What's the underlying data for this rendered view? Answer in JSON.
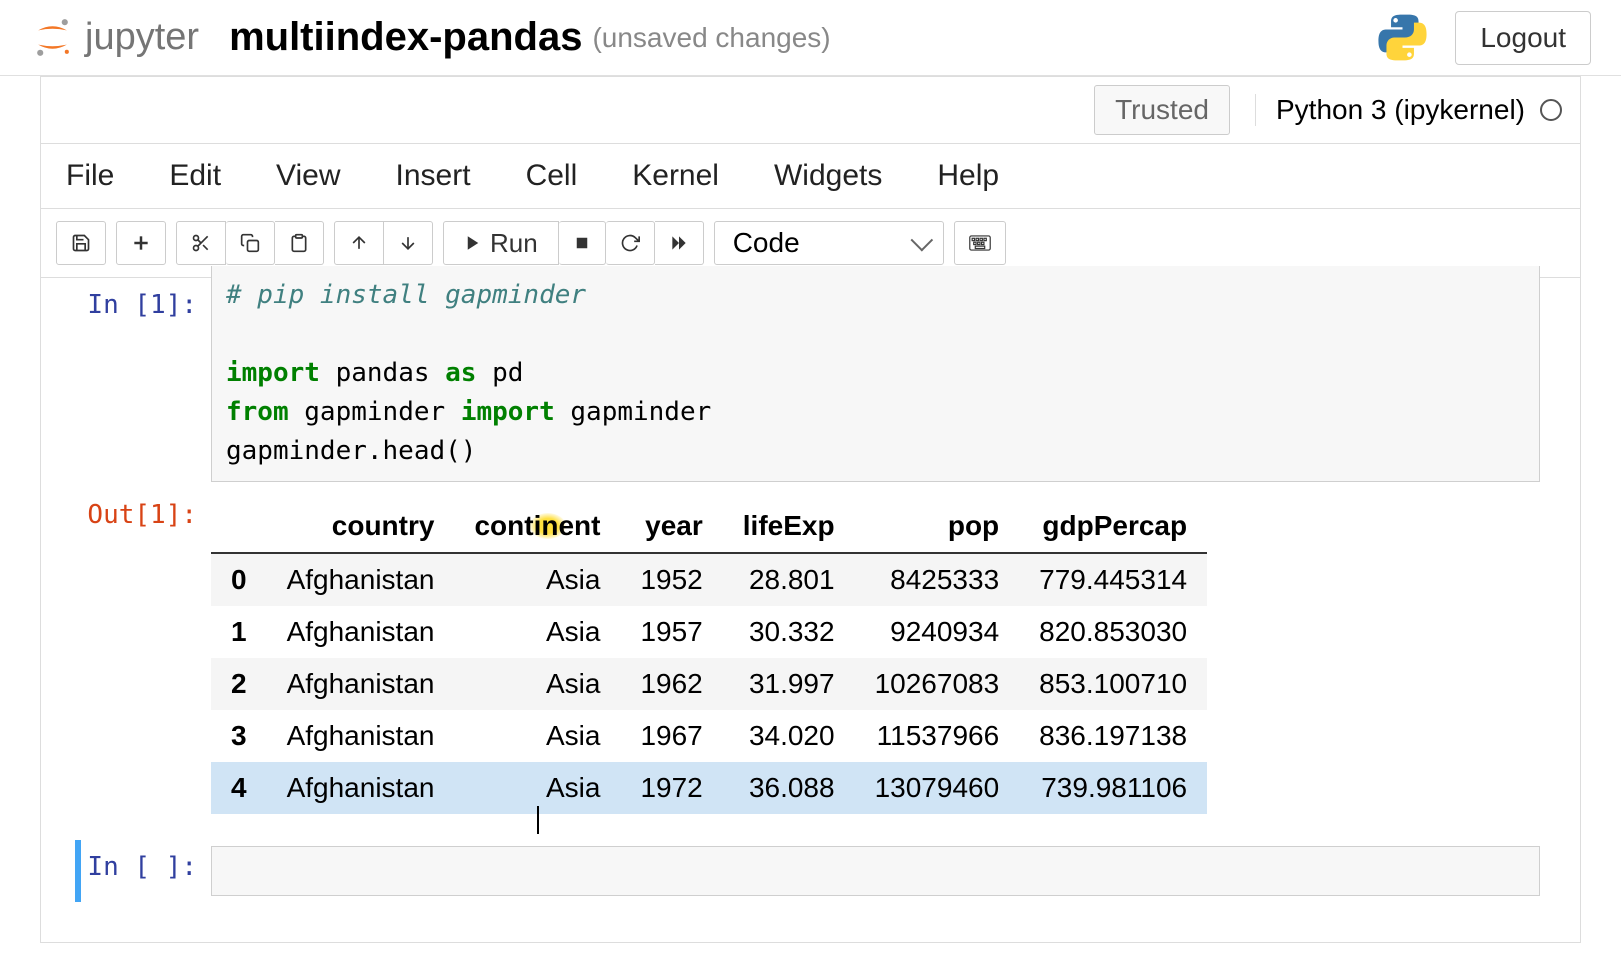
{
  "header": {
    "brand": "jupyter",
    "title": "multiindex-pandas",
    "status": "(unsaved changes)",
    "logout": "Logout"
  },
  "trust": {
    "trusted": "Trusted",
    "kernel": "Python 3 (ipykernel)"
  },
  "menu": {
    "file": "File",
    "edit": "Edit",
    "view": "View",
    "insert": "Insert",
    "cell": "Cell",
    "kernel": "Kernel",
    "widgets": "Widgets",
    "help": "Help"
  },
  "toolbar": {
    "run": "Run",
    "celltype": "Code"
  },
  "cells": {
    "in1": {
      "prompt": "In [1]:",
      "code_comment": "# pip install gapminder",
      "l2a": "import",
      "l2b": " pandas ",
      "l2c": "as",
      "l2d": " pd",
      "l3a": "from",
      "l3b": " gapminder ",
      "l3c": "import",
      "l3d": " gapminder",
      "l4": "gapminder.head()"
    },
    "out1": {
      "prompt": "Out[1]:"
    },
    "in_blank": {
      "prompt": "In [ ]:"
    }
  },
  "df": {
    "columns": [
      "country",
      "continent",
      "year",
      "lifeExp",
      "pop",
      "gdpPercap"
    ],
    "index": [
      "0",
      "1",
      "2",
      "3",
      "4"
    ],
    "rows": [
      [
        "Afghanistan",
        "Asia",
        "1952",
        "28.801",
        "8425333",
        "779.445314"
      ],
      [
        "Afghanistan",
        "Asia",
        "1957",
        "30.332",
        "9240934",
        "820.853030"
      ],
      [
        "Afghanistan",
        "Asia",
        "1962",
        "31.997",
        "10267083",
        "853.100710"
      ],
      [
        "Afghanistan",
        "Asia",
        "1967",
        "34.020",
        "11537966",
        "836.197138"
      ],
      [
        "Afghanistan",
        "Asia",
        "1972",
        "36.088",
        "13079460",
        "739.981106"
      ]
    ],
    "highlighted_row": 4,
    "highlight_header_col": 1
  },
  "colors": {
    "logo_orange": "#F37726",
    "kw_green": "#008000",
    "prompt_in": "#303F9F",
    "prompt_out": "#D84315",
    "row_hl": "#d0e4f5",
    "yellow_spot": "#ffe040"
  }
}
